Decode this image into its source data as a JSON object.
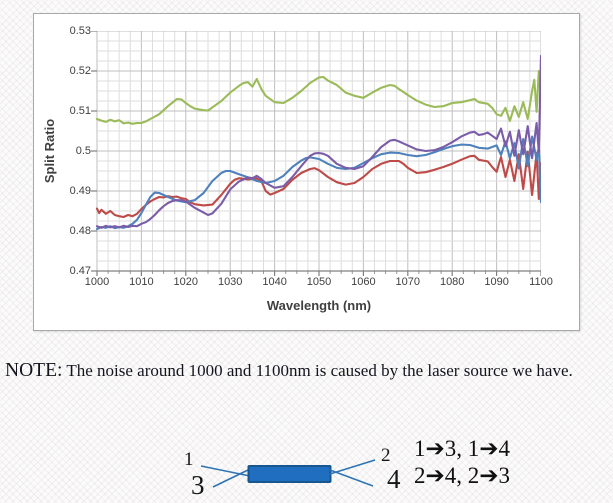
{
  "note": {
    "prefix": "NOTE:",
    "text": " The noise around 1000 and 1100nm is caused by the laser source we have."
  },
  "diagram": {
    "port1": "1",
    "port2": "2",
    "port3": "3",
    "port4": "4",
    "routes_line1": "1➔3, 1➔4",
    "routes_line2": "2➔4, 2➔3",
    "coupler_fill": "#1f6ec0",
    "coupler_stroke": "#17568f",
    "line_color": "#2e74b5"
  },
  "chart_data": {
    "type": "line",
    "title": "",
    "xlabel": "Wavelength (nm)",
    "ylabel": "Split Ratio",
    "xlim": [
      1000,
      1100
    ],
    "ylim": [
      0.47,
      0.53
    ],
    "x_ticks": [
      "1000",
      "1010",
      "1020",
      "1030",
      "1040",
      "1050",
      "1060",
      "1070",
      "1080",
      "1090",
      "1100"
    ],
    "y_ticks": [
      "0.47",
      "0.48",
      "0.49",
      "0.5",
      "0.51",
      "0.52",
      "0.53"
    ],
    "grid": {
      "minor_x": 2.5,
      "minor_y": 0.0025,
      "major_x": 10,
      "major_y": 0.01
    },
    "legend": "none",
    "annotation": "noise near 1000 and 1100 nm from laser source",
    "series": [
      {
        "name": "green",
        "color": "#9bbb59",
        "points": [
          [
            1000,
            0.508
          ],
          [
            1001,
            0.5076
          ],
          [
            1002,
            0.5073
          ],
          [
            1003,
            0.5078
          ],
          [
            1004,
            0.5074
          ],
          [
            1005,
            0.5077
          ],
          [
            1006,
            0.5069
          ],
          [
            1007,
            0.5071
          ],
          [
            1008,
            0.5068
          ],
          [
            1009,
            0.507
          ],
          [
            1010,
            0.507
          ],
          [
            1011,
            0.5074
          ],
          [
            1012,
            0.508
          ],
          [
            1014,
            0.5092
          ],
          [
            1016,
            0.5112
          ],
          [
            1018,
            0.513
          ],
          [
            1019,
            0.5129
          ],
          [
            1020,
            0.512
          ],
          [
            1021,
            0.5112
          ],
          [
            1022,
            0.5106
          ],
          [
            1024,
            0.5102
          ],
          [
            1025,
            0.5101
          ],
          [
            1026,
            0.5109
          ],
          [
            1028,
            0.5125
          ],
          [
            1030,
            0.5146
          ],
          [
            1032,
            0.5163
          ],
          [
            1033,
            0.517
          ],
          [
            1034,
            0.5172
          ],
          [
            1035,
            0.5161
          ],
          [
            1036,
            0.518
          ],
          [
            1037,
            0.5155
          ],
          [
            1038,
            0.5138
          ],
          [
            1040,
            0.5122
          ],
          [
            1042,
            0.512
          ],
          [
            1044,
            0.5133
          ],
          [
            1046,
            0.515
          ],
          [
            1048,
            0.517
          ],
          [
            1050,
            0.5184
          ],
          [
            1051,
            0.5185
          ],
          [
            1052,
            0.5176
          ],
          [
            1054,
            0.5165
          ],
          [
            1056,
            0.5146
          ],
          [
            1058,
            0.5138
          ],
          [
            1060,
            0.5133
          ],
          [
            1062,
            0.5146
          ],
          [
            1064,
            0.5158
          ],
          [
            1066,
            0.5165
          ],
          [
            1067,
            0.5163
          ],
          [
            1068,
            0.5155
          ],
          [
            1070,
            0.514
          ],
          [
            1072,
            0.5126
          ],
          [
            1074,
            0.5116
          ],
          [
            1076,
            0.511
          ],
          [
            1078,
            0.5112
          ],
          [
            1080,
            0.512
          ],
          [
            1082,
            0.5122
          ],
          [
            1084,
            0.5127
          ],
          [
            1085,
            0.513
          ],
          [
            1086,
            0.5122
          ],
          [
            1088,
            0.5118
          ],
          [
            1089,
            0.5108
          ],
          [
            1090,
            0.5092
          ],
          [
            1091,
            0.5088
          ],
          [
            1092,
            0.5108
          ],
          [
            1093,
            0.5075
          ],
          [
            1094,
            0.5112
          ],
          [
            1095,
            0.5085
          ],
          [
            1096,
            0.5122
          ],
          [
            1097,
            0.508
          ],
          [
            1098,
            0.515
          ],
          [
            1098.5,
            0.5178
          ],
          [
            1099,
            0.5098
          ],
          [
            1099.5,
            0.52
          ],
          [
            1100,
            0.5135
          ]
        ]
      },
      {
        "name": "red",
        "color": "#be4b48",
        "points": [
          [
            1000,
            0.4856
          ],
          [
            1000.5,
            0.4845
          ],
          [
            1001,
            0.4853
          ],
          [
            1002,
            0.4843
          ],
          [
            1003,
            0.485
          ],
          [
            1004,
            0.484
          ],
          [
            1005,
            0.4837
          ],
          [
            1006,
            0.4835
          ],
          [
            1007,
            0.484
          ],
          [
            1008,
            0.4837
          ],
          [
            1009,
            0.4843
          ],
          [
            1010,
            0.4855
          ],
          [
            1011,
            0.4865
          ],
          [
            1012,
            0.4874
          ],
          [
            1013,
            0.488
          ],
          [
            1014,
            0.4885
          ],
          [
            1015,
            0.4884
          ],
          [
            1016,
            0.4887
          ],
          [
            1017,
            0.4885
          ],
          [
            1018,
            0.4886
          ],
          [
            1019,
            0.4882
          ],
          [
            1020,
            0.488
          ],
          [
            1021,
            0.4872
          ],
          [
            1022,
            0.4867
          ],
          [
            1024,
            0.4864
          ],
          [
            1026,
            0.4866
          ],
          [
            1028,
            0.489
          ],
          [
            1030,
            0.4918
          ],
          [
            1031,
            0.4928
          ],
          [
            1032,
            0.4932
          ],
          [
            1034,
            0.4929
          ],
          [
            1036,
            0.4931
          ],
          [
            1037,
            0.4925
          ],
          [
            1038,
            0.49
          ],
          [
            1039,
            0.4891
          ],
          [
            1040,
            0.4895
          ],
          [
            1042,
            0.4905
          ],
          [
            1044,
            0.4928
          ],
          [
            1046,
            0.4945
          ],
          [
            1048,
            0.4955
          ],
          [
            1049,
            0.4957
          ],
          [
            1050,
            0.4952
          ],
          [
            1052,
            0.4935
          ],
          [
            1054,
            0.4922
          ],
          [
            1056,
            0.4916
          ],
          [
            1058,
            0.492
          ],
          [
            1060,
            0.4935
          ],
          [
            1062,
            0.4955
          ],
          [
            1064,
            0.4968
          ],
          [
            1066,
            0.4975
          ],
          [
            1068,
            0.4975
          ],
          [
            1069,
            0.4968
          ],
          [
            1070,
            0.4958
          ],
          [
            1072,
            0.4945
          ],
          [
            1074,
            0.4947
          ],
          [
            1076,
            0.4953
          ],
          [
            1078,
            0.496
          ],
          [
            1080,
            0.4968
          ],
          [
            1082,
            0.4978
          ],
          [
            1084,
            0.4987
          ],
          [
            1085,
            0.4988
          ],
          [
            1086,
            0.4978
          ],
          [
            1088,
            0.4974
          ],
          [
            1089,
            0.496
          ],
          [
            1090,
            0.4948
          ],
          [
            1091,
            0.4985
          ],
          [
            1092,
            0.4935
          ],
          [
            1093,
            0.4978
          ],
          [
            1094,
            0.4925
          ],
          [
            1095,
            0.4992
          ],
          [
            1096,
            0.4905
          ],
          [
            1097,
            0.4998
          ],
          [
            1098,
            0.489
          ],
          [
            1099,
            0.4995
          ],
          [
            1099.5,
            0.488
          ],
          [
            1100,
            0.497
          ]
        ]
      },
      {
        "name": "blue",
        "color": "#4f81bd",
        "points": [
          [
            1000,
            0.4805
          ],
          [
            1001,
            0.481
          ],
          [
            1002,
            0.4808
          ],
          [
            1003,
            0.4812
          ],
          [
            1004,
            0.4807
          ],
          [
            1005,
            0.481
          ],
          [
            1006,
            0.4808
          ],
          [
            1007,
            0.4812
          ],
          [
            1008,
            0.4818
          ],
          [
            1009,
            0.4828
          ],
          [
            1010,
            0.4845
          ],
          [
            1011,
            0.4865
          ],
          [
            1012,
            0.4885
          ],
          [
            1013,
            0.4896
          ],
          [
            1014,
            0.4895
          ],
          [
            1015,
            0.489
          ],
          [
            1016,
            0.4885
          ],
          [
            1018,
            0.4876
          ],
          [
            1020,
            0.4872
          ],
          [
            1022,
            0.4877
          ],
          [
            1024,
            0.4895
          ],
          [
            1026,
            0.4925
          ],
          [
            1028,
            0.4945
          ],
          [
            1029,
            0.495
          ],
          [
            1030,
            0.495
          ],
          [
            1032,
            0.4942
          ],
          [
            1034,
            0.4934
          ],
          [
            1036,
            0.4925
          ],
          [
            1038,
            0.492
          ],
          [
            1040,
            0.4925
          ],
          [
            1042,
            0.4938
          ],
          [
            1044,
            0.496
          ],
          [
            1046,
            0.4976
          ],
          [
            1047,
            0.4982
          ],
          [
            1048,
            0.4984
          ],
          [
            1050,
            0.498
          ],
          [
            1052,
            0.4968
          ],
          [
            1054,
            0.4958
          ],
          [
            1056,
            0.4955
          ],
          [
            1058,
            0.4958
          ],
          [
            1060,
            0.497
          ],
          [
            1062,
            0.4982
          ],
          [
            1064,
            0.4992
          ],
          [
            1066,
            0.4996
          ],
          [
            1068,
            0.4995
          ],
          [
            1070,
            0.499
          ],
          [
            1072,
            0.4987
          ],
          [
            1074,
            0.499
          ],
          [
            1076,
            0.4997
          ],
          [
            1078,
            0.5005
          ],
          [
            1080,
            0.5012
          ],
          [
            1082,
            0.5016
          ],
          [
            1084,
            0.5015
          ],
          [
            1086,
            0.5008
          ],
          [
            1088,
            0.5006
          ],
          [
            1090,
            0.5014
          ],
          [
            1091,
            0.499
          ],
          [
            1092,
            0.5024
          ],
          [
            1093,
            0.4982
          ],
          [
            1094,
            0.502
          ],
          [
            1095,
            0.4956
          ],
          [
            1096,
            0.503
          ],
          [
            1097,
            0.4962
          ],
          [
            1098,
            0.5036
          ],
          [
            1099,
            0.4978
          ],
          [
            1099.5,
            0.501
          ],
          [
            1100,
            0.4872
          ]
        ]
      },
      {
        "name": "purple",
        "color": "#7a5ca8",
        "points": [
          [
            1000,
            0.4812
          ],
          [
            1001,
            0.4808
          ],
          [
            1002,
            0.4813
          ],
          [
            1003,
            0.4809
          ],
          [
            1004,
            0.4812
          ],
          [
            1005,
            0.4809
          ],
          [
            1006,
            0.4813
          ],
          [
            1007,
            0.481
          ],
          [
            1008,
            0.4813
          ],
          [
            1009,
            0.4812
          ],
          [
            1010,
            0.4818
          ],
          [
            1011,
            0.4822
          ],
          [
            1012,
            0.483
          ],
          [
            1013,
            0.484
          ],
          [
            1014,
            0.4852
          ],
          [
            1015,
            0.4862
          ],
          [
            1016,
            0.487
          ],
          [
            1017,
            0.4875
          ],
          [
            1018,
            0.4877
          ],
          [
            1019,
            0.4877
          ],
          [
            1020,
            0.4874
          ],
          [
            1021,
            0.4866
          ],
          [
            1022,
            0.4858
          ],
          [
            1024,
            0.4846
          ],
          [
            1025,
            0.484
          ],
          [
            1026,
            0.4844
          ],
          [
            1028,
            0.4868
          ],
          [
            1030,
            0.4904
          ],
          [
            1032,
            0.4924
          ],
          [
            1034,
            0.4934
          ],
          [
            1035,
            0.4932
          ],
          [
            1036,
            0.4938
          ],
          [
            1037,
            0.493
          ],
          [
            1038,
            0.492
          ],
          [
            1040,
            0.4908
          ],
          [
            1042,
            0.4912
          ],
          [
            1044,
            0.4935
          ],
          [
            1046,
            0.4962
          ],
          [
            1048,
            0.4988
          ],
          [
            1049,
            0.4994
          ],
          [
            1050,
            0.4995
          ],
          [
            1051,
            0.4993
          ],
          [
            1052,
            0.4988
          ],
          [
            1054,
            0.4968
          ],
          [
            1056,
            0.4958
          ],
          [
            1058,
            0.4955
          ],
          [
            1060,
            0.4962
          ],
          [
            1062,
            0.4985
          ],
          [
            1064,
            0.501
          ],
          [
            1066,
            0.5026
          ],
          [
            1067,
            0.5028
          ],
          [
            1068,
            0.5024
          ],
          [
            1070,
            0.5014
          ],
          [
            1072,
            0.5004
          ],
          [
            1074,
            0.5
          ],
          [
            1076,
            0.5002
          ],
          [
            1078,
            0.501
          ],
          [
            1080,
            0.5022
          ],
          [
            1082,
            0.5036
          ],
          [
            1084,
            0.5046
          ],
          [
            1085,
            0.5048
          ],
          [
            1086,
            0.504
          ],
          [
            1087,
            0.5042
          ],
          [
            1088,
            0.5046
          ],
          [
            1089,
            0.5038
          ],
          [
            1090,
            0.503
          ],
          [
            1091,
            0.5056
          ],
          [
            1092,
            0.5012
          ],
          [
            1093,
            0.5048
          ],
          [
            1094,
            0.4988
          ],
          [
            1095,
            0.5052
          ],
          [
            1096,
            0.4992
          ],
          [
            1097,
            0.5062
          ],
          [
            1098,
            0.4982
          ],
          [
            1099,
            0.507
          ],
          [
            1099.5,
            0.4998
          ],
          [
            1100,
            0.5238
          ]
        ]
      }
    ]
  }
}
